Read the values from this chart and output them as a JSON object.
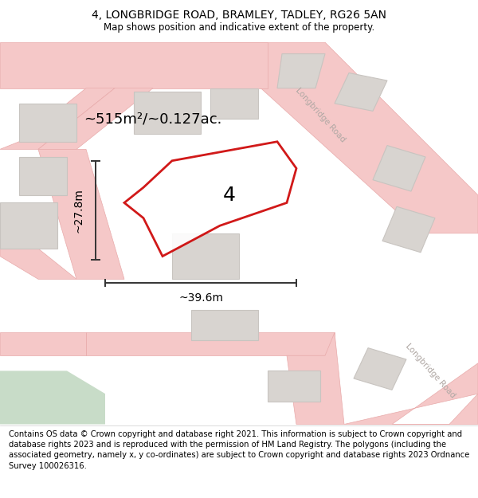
{
  "title": "4, LONGBRIDGE ROAD, BRAMLEY, TADLEY, RG26 5AN",
  "subtitle": "Map shows position and indicative extent of the property.",
  "area_label": "~515m²/~0.127ac.",
  "width_label": "~39.6m",
  "height_label": "~27.8m",
  "number_label": "4",
  "footer": "Contains OS data © Crown copyright and database right 2021. This information is subject to Crown copyright and database rights 2023 and is reproduced with the permission of HM Land Registry. The polygons (including the associated geometry, namely x, y co-ordinates) are subject to Crown copyright and database rights 2023 Ordnance Survey 100026316.",
  "map_bg": "#f5f2f0",
  "road_color": "#f5c8c8",
  "road_edge_color": "#e8aaaa",
  "building_fill": "#d8d4d0",
  "building_edge": "#c8c4c0",
  "green_fill": "#c8dcc8",
  "plot_color": "#cc0000",
  "dim_color": "#333333",
  "road_label_color": "#b0a8a4",
  "title_fontsize": 10,
  "subtitle_fontsize": 8.5,
  "footer_fontsize": 7.2,
  "area_fontsize": 13,
  "number_fontsize": 18,
  "dim_fontsize": 10,
  "road_label_fontsize": 7.5
}
